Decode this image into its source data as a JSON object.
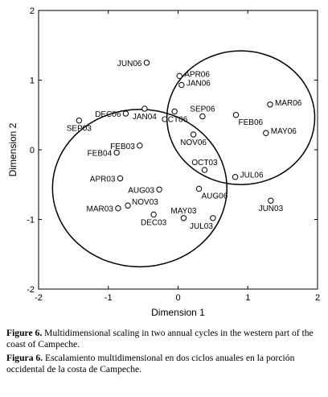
{
  "chart_data": {
    "type": "scatter",
    "xlabel": "Dimension 1",
    "ylabel": "Dimension 2",
    "xlim": [
      -2,
      2
    ],
    "ylim": [
      -2,
      2
    ],
    "xticks": [
      "-2",
      "-1",
      "0",
      "1",
      "2"
    ],
    "yticks": [
      "2",
      "1",
      "0",
      "-1",
      "-2"
    ],
    "grid": false,
    "points": [
      {
        "label": "JUN06",
        "x": -0.45,
        "y": 1.25,
        "label_pos": "left"
      },
      {
        "label": "APR06",
        "x": 0.02,
        "y": 1.06,
        "label_pos": "right"
      },
      {
        "label": "JAN06",
        "x": 0.05,
        "y": 0.93,
        "label_pos": "right"
      },
      {
        "label": "SEP06",
        "x": 0.35,
        "y": 0.48,
        "label_pos": "above"
      },
      {
        "label": "MAR06",
        "x": 1.32,
        "y": 0.65,
        "label_pos": "right"
      },
      {
        "label": "FEB06",
        "x": 0.83,
        "y": 0.5,
        "label_pos": "below-right"
      },
      {
        "label": "OCT06",
        "x": -0.05,
        "y": 0.55,
        "label_pos": "below"
      },
      {
        "label": "NOV06",
        "x": 0.22,
        "y": 0.22,
        "label_pos": "below"
      },
      {
        "label": "MAY06",
        "x": 1.26,
        "y": 0.24,
        "label_pos": "right"
      },
      {
        "label": "DEC06",
        "x": -0.75,
        "y": 0.52,
        "label_pos": "left"
      },
      {
        "label": "JAN04",
        "x": -0.48,
        "y": 0.59,
        "label_pos": "below"
      },
      {
        "label": "SEP03",
        "x": -1.42,
        "y": 0.42,
        "label_pos": "below"
      },
      {
        "label": "FEB03",
        "x": -0.55,
        "y": 0.06,
        "label_pos": "left"
      },
      {
        "label": "FEB04",
        "x": -0.88,
        "y": -0.04,
        "label_pos": "left"
      },
      {
        "label": "OCT03",
        "x": 0.38,
        "y": -0.29,
        "label_pos": "above"
      },
      {
        "label": "JUL06",
        "x": 0.82,
        "y": -0.39,
        "label_pos": "right"
      },
      {
        "label": "APR03",
        "x": -0.83,
        "y": -0.41,
        "label_pos": "left"
      },
      {
        "label": "AUG03",
        "x": -0.27,
        "y": -0.57,
        "label_pos": "left"
      },
      {
        "label": "AUG06",
        "x": 0.3,
        "y": -0.56,
        "label_pos": "below-right"
      },
      {
        "label": "NOV03",
        "x": -0.72,
        "y": -0.8,
        "label_pos": "right-up"
      },
      {
        "label": "MAR03",
        "x": -0.86,
        "y": -0.84,
        "label_pos": "left"
      },
      {
        "label": "DEC03",
        "x": -0.35,
        "y": -0.93,
        "label_pos": "below"
      },
      {
        "label": "MAY03",
        "x": 0.08,
        "y": -0.98,
        "label_pos": "above"
      },
      {
        "label": "JUL03",
        "x": 0.5,
        "y": -0.98,
        "label_pos": "below-left"
      },
      {
        "label": "JUN03",
        "x": 1.33,
        "y": -0.73,
        "label_pos": "below"
      }
    ],
    "ellipses": [
      {
        "cx": 0.9,
        "cy": 0.46,
        "rx": 1.06,
        "ry": 0.96
      },
      {
        "cx": -0.55,
        "cy": -0.55,
        "rx": 1.25,
        "ry": 1.13
      }
    ]
  },
  "captions": {
    "english_label": "Figure 6.",
    "english_text": " Multidimensional scaling in two annual cycles in the western part of the coast of Campeche.",
    "spanish_label": "Figura 6.",
    "spanish_text": " Escalamiento multidimensional en dos ciclos anuales en la porción occidental de la costa de Campeche."
  }
}
